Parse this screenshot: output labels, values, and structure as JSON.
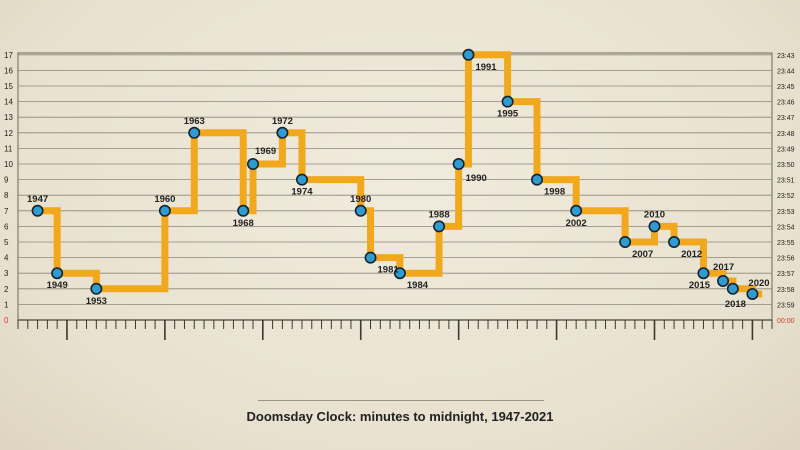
{
  "chart_data": {
    "type": "line",
    "step": true,
    "title": "Doomsday Clock: minutes to midnight, 1947-2021",
    "xlim": [
      1945,
      2022
    ],
    "ylim": [
      0,
      17
    ],
    "y_ticks": [
      0,
      1,
      2,
      3,
      4,
      5,
      6,
      7,
      8,
      9,
      10,
      11,
      12,
      13,
      14,
      15,
      16,
      17
    ],
    "right_ticks": [
      "00:00",
      "23:59",
      "23:58",
      "23:57",
      "23:56",
      "23:55",
      "23:54",
      "23:53",
      "23:52",
      "23:51",
      "23:50",
      "23:49",
      "23:48",
      "23:47",
      "23:46",
      "23:45",
      "23:44",
      "23:43"
    ],
    "points": [
      {
        "year": 1947,
        "minutes": 7,
        "label": "1947"
      },
      {
        "year": 1949,
        "minutes": 3,
        "label": "1949"
      },
      {
        "year": 1953,
        "minutes": 2,
        "label": "1953"
      },
      {
        "year": 1960,
        "minutes": 7,
        "label": "1960"
      },
      {
        "year": 1963,
        "minutes": 12,
        "label": "1963"
      },
      {
        "year": 1968,
        "minutes": 7,
        "label": "1968"
      },
      {
        "year": 1969,
        "minutes": 10,
        "label": "1969"
      },
      {
        "year": 1972,
        "minutes": 12,
        "label": "1972"
      },
      {
        "year": 1974,
        "minutes": 9,
        "label": "1974"
      },
      {
        "year": 1980,
        "minutes": 7,
        "label": "1980"
      },
      {
        "year": 1981,
        "minutes": 4,
        "label": "1981"
      },
      {
        "year": 1984,
        "minutes": 3,
        "label": "1984"
      },
      {
        "year": 1988,
        "minutes": 6,
        "label": "1988"
      },
      {
        "year": 1990,
        "minutes": 10,
        "label": "1990"
      },
      {
        "year": 1991,
        "minutes": 17,
        "label": "1991"
      },
      {
        "year": 1995,
        "minutes": 14,
        "label": "1995"
      },
      {
        "year": 1998,
        "minutes": 9,
        "label": "1998"
      },
      {
        "year": 2002,
        "minutes": 7,
        "label": "2002"
      },
      {
        "year": 2007,
        "minutes": 5,
        "label": "2007"
      },
      {
        "year": 2010,
        "minutes": 6,
        "label": "2010"
      },
      {
        "year": 2012,
        "minutes": 5,
        "label": "2012"
      },
      {
        "year": 2015,
        "minutes": 3,
        "label": "2015"
      },
      {
        "year": 2017,
        "minutes": 2.5,
        "label": "2017"
      },
      {
        "year": 2018,
        "minutes": 2,
        "label": "2018"
      },
      {
        "year": 2020,
        "minutes": 1.67,
        "label": "2020"
      }
    ],
    "end_year": 2021,
    "grid": true,
    "colors": {
      "line": "#f2a81d",
      "marker": "#2f9bd1",
      "marker_edge": "#15242f"
    }
  }
}
